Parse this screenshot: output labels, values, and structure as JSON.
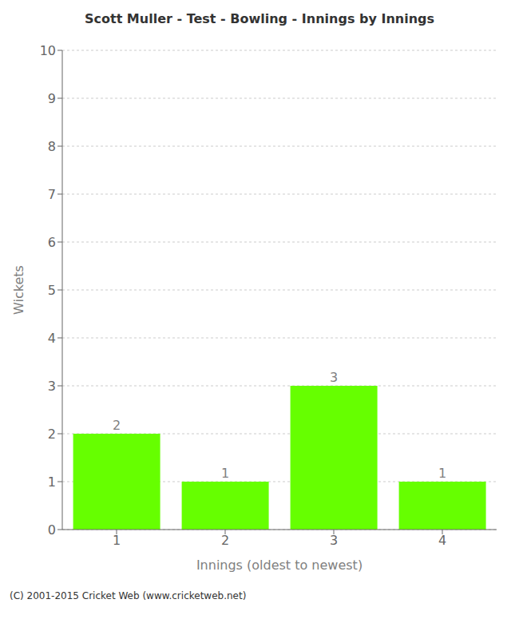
{
  "chart_data": {
    "type": "bar",
    "title": "Scott Muller - Test - Bowling - Innings by Innings",
    "xlabel": "Innings (oldest to newest)",
    "ylabel": "Wickets",
    "categories": [
      "1",
      "2",
      "3",
      "4"
    ],
    "values": [
      2,
      1,
      3,
      1
    ],
    "color": "#66ff00",
    "ylim": [
      0,
      10
    ],
    "yticks": [
      0,
      1,
      2,
      3,
      4,
      5,
      6,
      7,
      8,
      9,
      10
    ],
    "grid": true,
    "data_labels": true,
    "annotations": [
      "(C) 2001-2015 Cricket Web (www.cricketweb.net)"
    ]
  }
}
